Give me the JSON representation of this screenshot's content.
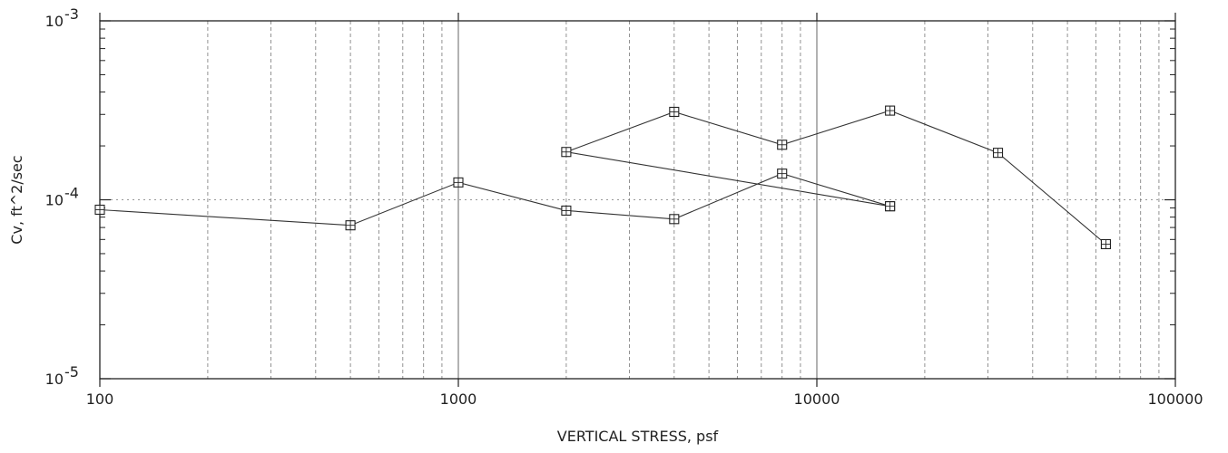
{
  "chart_data": {
    "type": "scatter",
    "xlabel": "VERTICAL STRESS, psf",
    "ylabel": "Cv, ft^2/sec",
    "x_scale": "log",
    "y_scale": "log",
    "xlim": [
      100,
      100000
    ],
    "ylim": [
      1e-05,
      0.001
    ],
    "grid": true,
    "x_tick_labels": [
      "100",
      "1000",
      "10000",
      "100000"
    ],
    "y_tick_labels": [
      {
        "base": "10",
        "exp": "-3"
      },
      {
        "base": "10",
        "exp": "-4"
      },
      {
        "base": "10",
        "exp": "-5"
      }
    ],
    "marker": "square-cross",
    "line_color": "#333333",
    "series": [
      {
        "x": [
          100,
          500,
          1000,
          2000,
          4000,
          8000,
          16000
        ],
        "y": [
          8.8e-05,
          7.2e-05,
          0.000125,
          8.7e-05,
          7.8e-05,
          0.00014,
          9.2e-05
        ]
      },
      {
        "x": [
          16000,
          2000,
          4000,
          8000,
          16000,
          32000,
          64000
        ],
        "y": [
          9.2e-05,
          0.000185,
          0.00031,
          0.000203,
          0.000315,
          0.000183,
          5.65e-05
        ]
      }
    ]
  }
}
